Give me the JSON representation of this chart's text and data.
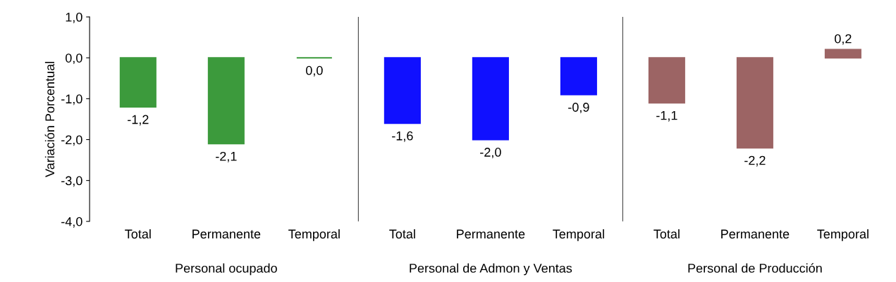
{
  "chart_data": {
    "type": "bar",
    "ylabel": "Variación Porcentual",
    "categories": [
      "Total",
      "Permanente",
      "Temporal",
      "Total",
      "Permanente",
      "Temporal",
      "Total",
      "Permanente",
      "Temporal"
    ],
    "values": [
      -1.2,
      -2.1,
      0.0,
      -1.6,
      -2.0,
      -0.9,
      -1.1,
      -2.2,
      0.2
    ],
    "colors": [
      "#3c9a3c",
      "#3c9a3c",
      "#3c9a3c",
      "#1010ff",
      "#1010ff",
      "#1010ff",
      "#9c6464",
      "#9c6464",
      "#9c6464"
    ],
    "value_labels": [
      "-1,2",
      "-2,1",
      "0,0",
      "-1,6",
      "-2,0",
      "-0,9",
      "-1,1",
      "-2,2",
      "0,2"
    ],
    "annotations": [
      "Personal ocupado",
      "Personal de Admon y Ventas",
      "Personal de Producción"
    ],
    "ylim": [
      -4.0,
      1.0
    ],
    "yticks": [
      {
        "value": 1.0,
        "label": "1,0"
      },
      {
        "value": 0.0,
        "label": "0,0"
      },
      {
        "value": -1.0,
        "label": "-1,0"
      },
      {
        "value": -2.0,
        "label": "-2,0"
      },
      {
        "value": -3.0,
        "label": "-3,0"
      },
      {
        "value": -4.0,
        "label": "-4,0"
      }
    ],
    "grid": false,
    "legend": false
  }
}
